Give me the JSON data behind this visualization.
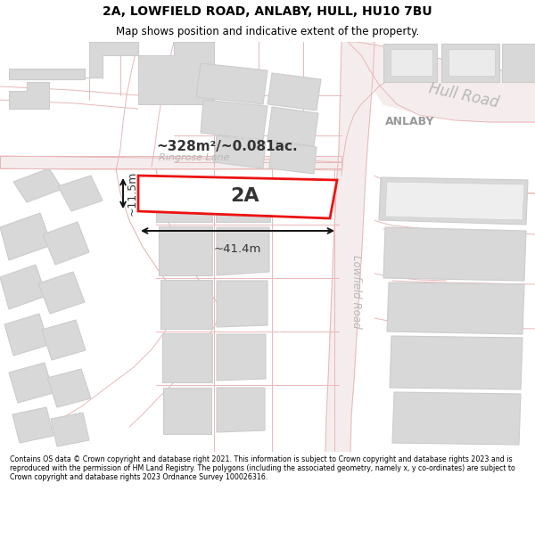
{
  "title_line1": "2A, LOWFIELD ROAD, ANLABY, HULL, HU10 7BU",
  "title_line2": "Map shows position and indicative extent of the property.",
  "footer_text": "Contains OS data © Crown copyright and database right 2021. This information is subject to Crown copyright and database rights 2023 and is reproduced with the permission of HM Land Registry. The polygons (including the associated geometry, namely x, y co-ordinates) are subject to Crown copyright and database rights 2023 Ordnance Survey 100026316.",
  "area_label": "~328m²/~0.081ac.",
  "plot_label": "2A",
  "dim_width": "~41.4m",
  "dim_height": "~11.5m",
  "road_label_lowfield": "Lowfield Road",
  "road_label_ringrose": "Ringrose Lane",
  "road_label_hull": "Hull Road",
  "place_label": "ANLABY",
  "map_bg": "#f9f9f9",
  "road_fill": "#f5eded",
  "road_edge": "#e8b8b8",
  "building_fill": "#d8d8d8",
  "building_edge": "#cccccc",
  "highlight_fill": "#ffffff",
  "highlight_stroke": "#ee1111",
  "arrow_color": "#111111",
  "label_gray": "#aaaaaa",
  "label_dark": "#333333",
  "text_road_color": "#b8b8b8"
}
